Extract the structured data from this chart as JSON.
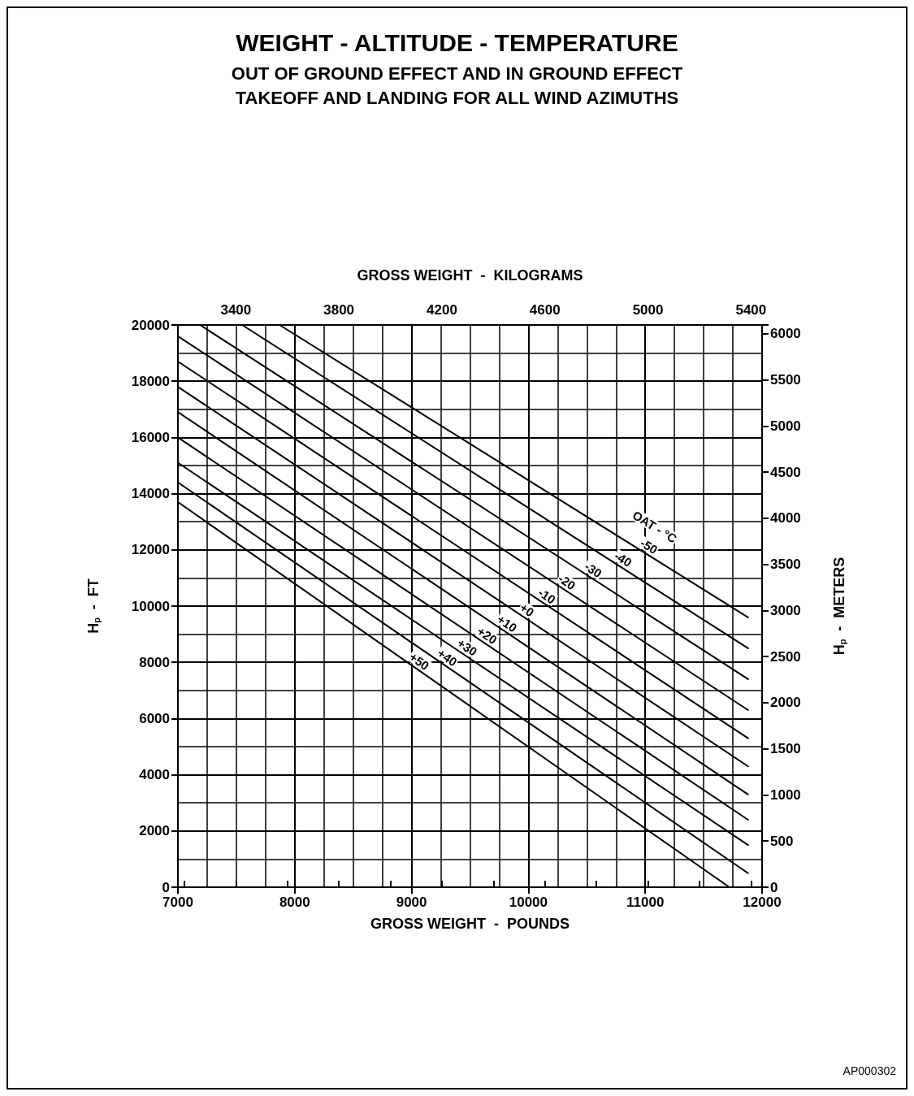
{
  "chart_data": {
    "type": "line",
    "title": "WEIGHT - ALTITUDE - TEMPERATURE",
    "subtitle": "OUT OF GROUND EFFECT AND IN GROUND EFFECT\nTAKEOFF AND LANDING FOR ALL WIND AZIMUTHS",
    "xlabel": "GROSS WEIGHT  -  POUNDS",
    "x2label": "GROSS WEIGHT  -  KILOGRAMS",
    "ylabel": "H$_{p}$  -  FT",
    "y2label": "H$_{p}$  -  METERS",
    "legend_title": "OAT - °C",
    "annotations": [
      "AP000302"
    ],
    "series": [
      {
        "name": "-50",
        "color": "#000000",
        "x": [
          7870,
          11880
        ],
        "values": [
          20000,
          9600
        ]
      },
      {
        "name": "-40",
        "color": "#000000",
        "x": [
          7550,
          11880
        ],
        "values": [
          20000,
          8500
        ]
      },
      {
        "name": "-30",
        "color": "#000000",
        "x": [
          7190,
          11880
        ],
        "values": [
          20000,
          7400
        ]
      },
      {
        "name": "-20",
        "color": "#000000",
        "x": [
          7000,
          11880
        ],
        "values": [
          19600,
          6300
        ]
      },
      {
        "name": "-10",
        "color": "#000000",
        "x": [
          7000,
          11880
        ],
        "values": [
          18700,
          5300
        ]
      },
      {
        "name": "+0",
        "color": "#000000",
        "x": [
          7000,
          11880
        ],
        "values": [
          17800,
          4300
        ]
      },
      {
        "name": "+10",
        "color": "#000000",
        "x": [
          7000,
          11880
        ],
        "values": [
          16900,
          3300
        ]
      },
      {
        "name": "+20",
        "color": "#000000",
        "x": [
          7000,
          11880
        ],
        "values": [
          16000,
          2400
        ]
      },
      {
        "name": "+30",
        "color": "#000000",
        "x": [
          7000,
          11880
        ],
        "values": [
          15100,
          1500
        ]
      },
      {
        "name": "+40",
        "color": "#000000",
        "x": [
          7000,
          11880
        ],
        "values": [
          14400,
          500
        ]
      },
      {
        "name": "+50",
        "color": "#000000",
        "x": [
          7000,
          11720
        ],
        "values": [
          13700,
          0
        ]
      }
    ],
    "xlim": [
      7000,
      12000
    ],
    "xticks": [
      7000,
      8000,
      9000,
      10000,
      11000,
      12000
    ],
    "ylim": [
      0,
      20000
    ],
    "yticks": [
      0,
      2000,
      4000,
      6000,
      8000,
      10000,
      12000,
      14000,
      16000,
      18000,
      20000
    ],
    "x2lim": [
      3175,
      5443
    ],
    "x2ticks": [
      {
        "value": 3200,
        "label": null
      },
      3400,
      {
        "value": 3600,
        "label": null
      },
      3800,
      {
        "value": 4000,
        "label": null
      },
      4200,
      {
        "value": 4400,
        "label": null
      },
      4600,
      {
        "value": 4800,
        "label": null
      },
      5000,
      {
        "value": 5200,
        "label": null
      },
      5400
    ],
    "y2lim": [
      0,
      6096
    ],
    "y2ticks": [
      0,
      500,
      1000,
      1500,
      2000,
      2500,
      3000,
      3500,
      4000,
      4500,
      5000,
      5500,
      6000
    ],
    "grid": true,
    "marker": "none",
    "line_style": "solid"
  }
}
